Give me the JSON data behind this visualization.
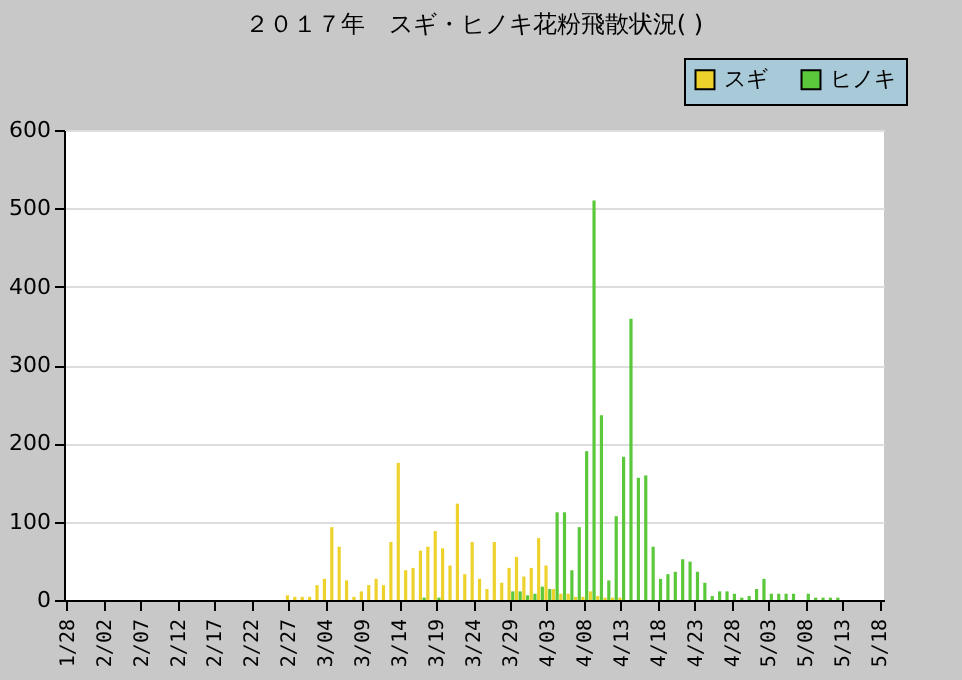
{
  "chart_data": {
    "type": "bar",
    "title": "２０１７年　スギ・ヒノキ花粉飛散状況( )",
    "categories": [
      "1/28",
      null,
      null,
      null,
      null,
      "2/02",
      null,
      null,
      null,
      null,
      "2/07",
      null,
      null,
      null,
      null,
      "2/12",
      null,
      null,
      null,
      null,
      "2/17",
      null,
      null,
      null,
      null,
      "2/22",
      null,
      null,
      null,
      null,
      "2/27",
      null,
      null,
      null,
      null,
      "3/04",
      null,
      null,
      null,
      null,
      "3/09",
      null,
      null,
      null,
      null,
      "3/14",
      null,
      null,
      null,
      null,
      "3/19",
      null,
      null,
      null,
      null,
      "3/24",
      null,
      null,
      null,
      null,
      "3/29",
      null,
      null,
      null,
      null,
      "4/03",
      null,
      null,
      null,
      null,
      "4/08",
      null,
      null,
      null,
      null,
      "4/13",
      null,
      null,
      null,
      null,
      "4/18",
      null,
      null,
      null,
      null,
      "4/23",
      null,
      null,
      null,
      null,
      "4/28",
      null,
      null,
      null,
      null,
      "5/03",
      null,
      null,
      null,
      null,
      "5/08",
      null,
      null,
      null,
      null,
      "5/13",
      null,
      null,
      null,
      null,
      "5/18"
    ],
    "series": [
      {
        "name": "スギ",
        "color": "#eed22c",
        "values": [
          0,
          0,
          0,
          0,
          0,
          0,
          0,
          0,
          0,
          0,
          0,
          0,
          0,
          0,
          0,
          0,
          0,
          0,
          0,
          0,
          0,
          0,
          0,
          0,
          0,
          0,
          0,
          0,
          0,
          0,
          6,
          4,
          4,
          4,
          19,
          27,
          93,
          68,
          25,
          4,
          11,
          19,
          27,
          19,
          74,
          175,
          38,
          41,
          63,
          68,
          88,
          66,
          44,
          123,
          33,
          74,
          27,
          14,
          74,
          22,
          41,
          55,
          30,
          41,
          79,
          44,
          14,
          8,
          8,
          4,
          4,
          11,
          5,
          3,
          3,
          3,
          0,
          0,
          0,
          0,
          0,
          0,
          0,
          0,
          0,
          0,
          0,
          0,
          0,
          0,
          0,
          0,
          0,
          0,
          0,
          0,
          0,
          0,
          0,
          0,
          0,
          0,
          0,
          0,
          0,
          0,
          0,
          0,
          0,
          0,
          0
        ]
      },
      {
        "name": "ヒノキ",
        "color": "#5ac83a",
        "values": [
          0,
          0,
          0,
          0,
          0,
          0,
          0,
          0,
          0,
          0,
          0,
          0,
          0,
          0,
          0,
          0,
          0,
          0,
          0,
          0,
          0,
          0,
          0,
          0,
          0,
          0,
          0,
          0,
          0,
          0,
          0,
          0,
          0,
          0,
          0,
          0,
          0,
          0,
          0,
          0,
          0,
          0,
          0,
          0,
          0,
          0,
          0,
          0,
          3,
          0,
          3,
          0,
          0,
          0,
          0,
          0,
          0,
          0,
          0,
          0,
          11,
          11,
          6,
          8,
          17,
          14,
          112,
          112,
          38,
          93,
          190,
          510,
          236,
          25,
          107,
          183,
          359,
          156,
          159,
          68,
          27,
          33,
          36,
          52,
          49,
          36,
          22,
          5,
          11,
          11,
          8,
          3,
          5,
          14,
          27,
          8,
          8,
          8,
          8,
          0,
          8,
          3,
          3,
          3,
          3,
          0,
          0,
          0,
          0,
          0,
          0
        ]
      }
    ],
    "ylim": [
      0,
      600
    ],
    "yticks": [
      0,
      100,
      200,
      300,
      400,
      500,
      600
    ],
    "grid": "y",
    "legend": "top right"
  }
}
